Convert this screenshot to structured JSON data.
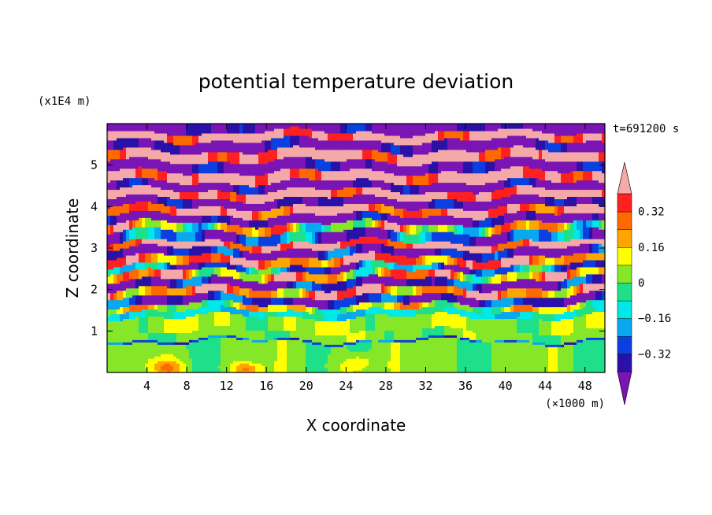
{
  "chart_data": {
    "type": "heatmap",
    "title": "potential temperature deviation",
    "xlabel": "X coordinate",
    "ylabel": "Z coordinate",
    "x_unit": "(×1000 m)",
    "y_unit": "(x1E4 m)",
    "time_label": "t=691200 s",
    "xlim": [
      0,
      50
    ],
    "ylim": [
      0,
      6
    ],
    "x_ticks": [
      4,
      8,
      12,
      16,
      20,
      24,
      28,
      32,
      36,
      40,
      44,
      48
    ],
    "y_ticks": [
      1,
      2,
      3,
      4,
      5
    ],
    "x_tick_labels": [
      "4",
      "8",
      "12",
      "16",
      "20",
      "24",
      "28",
      "32",
      "36",
      "40",
      "44",
      "48"
    ],
    "y_tick_labels": [
      "1",
      "2",
      "3",
      "4",
      "5"
    ],
    "colorbar": {
      "levels": [
        -0.4,
        -0.32,
        -0.24,
        -0.16,
        -0.08,
        0,
        0.08,
        0.16,
        0.24,
        0.32,
        0.4
      ],
      "labels": [
        "0.32",
        "0.16",
        "0",
        "−0.16",
        "−0.32"
      ],
      "label_values": [
        0.32,
        0.16,
        0,
        -0.16,
        -0.32
      ],
      "colors": [
        "#7a14b4",
        "#2a11a8",
        "#0a3fe0",
        "#08a8f0",
        "#00e8e8",
        "#1ee08a",
        "#86e628",
        "#ffff00",
        "#ffa500",
        "#ff6a00",
        "#ff2020",
        "#f4a8a8"
      ],
      "extend": "both"
    },
    "bands": [
      {
        "z0": 0.0,
        "z1": 0.75,
        "mean": 0.02,
        "amp": 0.06
      },
      {
        "z0": 0.75,
        "z1": 0.8,
        "mean": -0.26,
        "amp": 0.07
      },
      {
        "z0": 0.8,
        "z1": 1.0,
        "mean": 0.03,
        "amp": 0.06
      },
      {
        "z0": 1.0,
        "z1": 1.35,
        "mean": 0.06,
        "amp": 0.08
      },
      {
        "z0": 1.35,
        "z1": 1.5,
        "mean": -0.12,
        "amp": 0.08
      },
      {
        "z0": 1.5,
        "z1": 1.65,
        "mean": 0.08,
        "amp": 0.2
      },
      {
        "z0": 1.65,
        "z1": 1.85,
        "mean": -0.35,
        "amp": 0.15
      },
      {
        "z0": 1.85,
        "z1": 2.05,
        "mean": 0.3,
        "amp": 0.25
      },
      {
        "z0": 2.05,
        "z1": 2.25,
        "mean": -0.4,
        "amp": 0.2
      },
      {
        "z0": 2.25,
        "z1": 2.45,
        "mean": 0.2,
        "amp": 0.3
      },
      {
        "z0": 2.45,
        "z1": 2.6,
        "mean": -0.25,
        "amp": 0.25
      },
      {
        "z0": 2.6,
        "z1": 2.8,
        "mean": 0.32,
        "amp": 0.2
      },
      {
        "z0": 2.8,
        "z1": 3.0,
        "mean": -0.4,
        "amp": 0.2
      },
      {
        "z0": 3.0,
        "z1": 3.15,
        "mean": 0.42,
        "amp": 0.15
      },
      {
        "z0": 3.15,
        "z1": 3.4,
        "mean": -0.3,
        "amp": 0.25
      },
      {
        "z0": 3.4,
        "z1": 3.6,
        "mean": 0.1,
        "amp": 0.3
      },
      {
        "z0": 3.6,
        "z1": 3.8,
        "mean": -0.45,
        "amp": 0.15
      },
      {
        "z0": 3.8,
        "z1": 4.0,
        "mean": 0.4,
        "amp": 0.2
      },
      {
        "z0": 4.0,
        "z1": 4.2,
        "mean": -0.45,
        "amp": 0.15
      },
      {
        "z0": 4.2,
        "z1": 4.4,
        "mean": 0.45,
        "amp": 0.15
      },
      {
        "z0": 4.4,
        "z1": 4.6,
        "mean": -0.45,
        "amp": 0.15
      },
      {
        "z0": 4.6,
        "z1": 4.85,
        "mean": 0.45,
        "amp": 0.15
      },
      {
        "z0": 4.85,
        "z1": 5.1,
        "mean": -0.45,
        "amp": 0.15
      },
      {
        "z0": 5.1,
        "z1": 5.35,
        "mean": 0.45,
        "amp": 0.15
      },
      {
        "z0": 5.35,
        "z1": 5.6,
        "mean": -0.45,
        "amp": 0.15
      },
      {
        "z0": 5.6,
        "z1": 5.8,
        "mean": 0.45,
        "amp": 0.15
      },
      {
        "z0": 5.8,
        "z1": 6.0,
        "mean": -0.45,
        "amp": 0.15
      }
    ]
  }
}
